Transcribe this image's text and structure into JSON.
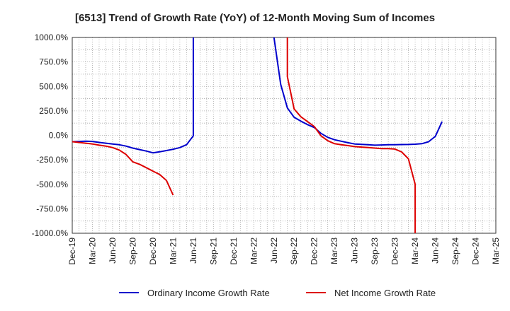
{
  "chart_data": {
    "type": "line",
    "title": "[6513]  Trend of Growth Rate (YoY) of 12-Month Moving Sum of Incomes",
    "xlabel": "",
    "ylabel": "",
    "ylim": [
      -1000,
      1000
    ],
    "yticks": [
      1000,
      750,
      500,
      250,
      0,
      -250,
      -500,
      -750,
      -1000
    ],
    "ytick_labels": [
      "1000.0%",
      "750.0%",
      "500.0%",
      "250.0%",
      "0.0%",
      "-250.0%",
      "-500.0%",
      "-750.0%",
      "-1000.0%"
    ],
    "xticks": [
      "Dec-19",
      "Mar-20",
      "Jun-20",
      "Sep-20",
      "Dec-20",
      "Mar-21",
      "Jun-21",
      "Sep-21",
      "Dec-21",
      "Mar-22",
      "Jun-22",
      "Sep-22",
      "Dec-22",
      "Mar-23",
      "Jun-23",
      "Sep-23",
      "Dec-23",
      "Mar-24",
      "Jun-24",
      "Sep-24",
      "Dec-24",
      "Mar-25"
    ],
    "grid": true,
    "legend_position": "bottom",
    "series": [
      {
        "name": "Ordinary Income Growth Rate",
        "color": "#0000cc",
        "points": [
          [
            "Dec-19",
            -65
          ],
          [
            "Jan-20",
            -62
          ],
          [
            "Feb-20",
            -60
          ],
          [
            "Mar-20",
            -62
          ],
          [
            "Apr-20",
            -72
          ],
          [
            "May-20",
            -80
          ],
          [
            "Jun-20",
            -88
          ],
          [
            "Jul-20",
            -96
          ],
          [
            "Aug-20",
            -110
          ],
          [
            "Sep-20",
            -130
          ],
          [
            "Oct-20",
            -145
          ],
          [
            "Nov-20",
            -160
          ],
          [
            "Dec-20",
            -178
          ],
          [
            "Jan-21",
            -168
          ],
          [
            "Feb-21",
            -155
          ],
          [
            "Mar-21",
            -142
          ],
          [
            "Apr-21",
            -125
          ],
          [
            "May-21",
            -95
          ],
          [
            "Jun-21",
            -5
          ],
          [
            "Jun-21",
            1000
          ],
          null,
          [
            "Jun-22",
            1000
          ],
          [
            "Jul-22",
            520
          ],
          [
            "Aug-22",
            280
          ],
          [
            "Sep-22",
            185
          ],
          [
            "Oct-22",
            145
          ],
          [
            "Nov-22",
            110
          ],
          [
            "Dec-22",
            80
          ],
          [
            "Jan-23",
            20
          ],
          [
            "Feb-23",
            -20
          ],
          [
            "Mar-23",
            -45
          ],
          [
            "Apr-23",
            -60
          ],
          [
            "May-23",
            -75
          ],
          [
            "Jun-23",
            -88
          ],
          [
            "Jul-23",
            -92
          ],
          [
            "Aug-23",
            -95
          ],
          [
            "Sep-23",
            -100
          ],
          [
            "Oct-23",
            -98
          ],
          [
            "Nov-23",
            -96
          ],
          [
            "Dec-23",
            -95
          ],
          [
            "Jan-24",
            -94
          ],
          [
            "Feb-24",
            -93
          ],
          [
            "Mar-24",
            -90
          ],
          [
            "Apr-24",
            -85
          ],
          [
            "May-24",
            -65
          ],
          [
            "Jun-24",
            -10
          ],
          [
            "Jul-24",
            140
          ]
        ]
      },
      {
        "name": "Net Income Growth Rate",
        "color": "#dd0000",
        "points": [
          [
            "Dec-19",
            -65
          ],
          [
            "Jan-20",
            -72
          ],
          [
            "Feb-20",
            -80
          ],
          [
            "Mar-20",
            -88
          ],
          [
            "Apr-20",
            -100
          ],
          [
            "May-20",
            -110
          ],
          [
            "Jun-20",
            -125
          ],
          [
            "Jul-20",
            -150
          ],
          [
            "Aug-20",
            -195
          ],
          [
            "Sep-20",
            -270
          ],
          [
            "Oct-20",
            -295
          ],
          [
            "Nov-20",
            -330
          ],
          [
            "Dec-20",
            -365
          ],
          [
            "Jan-21",
            -400
          ],
          [
            "Feb-21",
            -460
          ],
          [
            "Mar-21",
            -610
          ],
          null,
          [
            "Aug-22",
            1000
          ],
          [
            "Aug-22",
            600
          ],
          [
            "Sep-22",
            270
          ],
          [
            "Oct-22",
            190
          ],
          [
            "Nov-22",
            140
          ],
          [
            "Dec-22",
            90
          ],
          [
            "Jan-23",
            -5
          ],
          [
            "Feb-23",
            -55
          ],
          [
            "Mar-23",
            -85
          ],
          [
            "Apr-23",
            -95
          ],
          [
            "May-23",
            -105
          ],
          [
            "Jun-23",
            -115
          ],
          [
            "Jul-23",
            -120
          ],
          [
            "Aug-23",
            -125
          ],
          [
            "Sep-23",
            -130
          ],
          [
            "Oct-23",
            -135
          ],
          [
            "Nov-23",
            -135
          ],
          [
            "Dec-23",
            -140
          ],
          [
            "Jan-24",
            -170
          ],
          [
            "Feb-24",
            -240
          ],
          [
            "Mar-24",
            -500
          ],
          [
            "Mar-24",
            -1000
          ]
        ]
      }
    ]
  }
}
